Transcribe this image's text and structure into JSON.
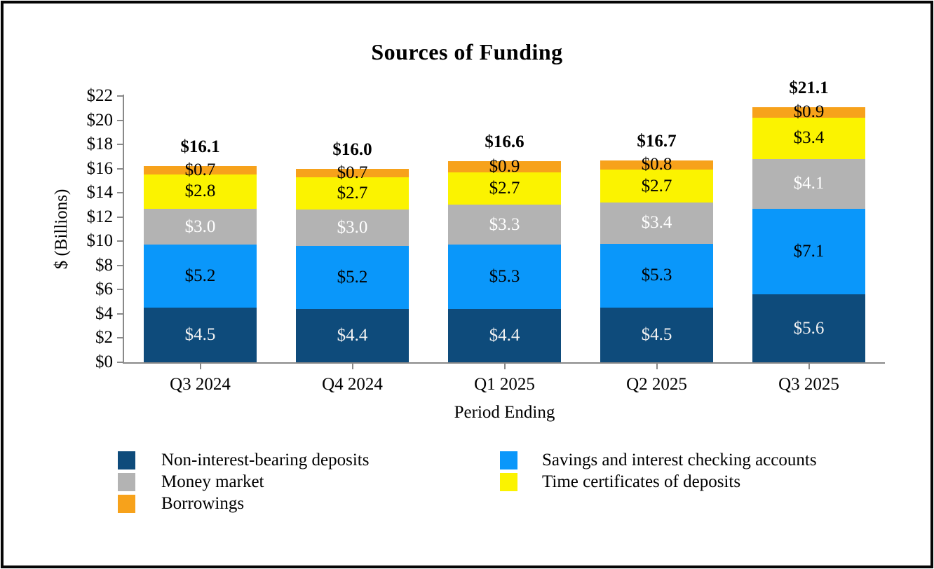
{
  "chart_data": {
    "type": "bar",
    "stacked": true,
    "title": "Sources of Funding",
    "xlabel": "Period Ending",
    "ylabel": "$ (Billions)",
    "ylim": [
      0,
      22
    ],
    "ytick_step": 2,
    "grid": false,
    "legend_position": "bottom",
    "ytick_labels": [
      "$0",
      "$2",
      "$4",
      "$6",
      "$8",
      "$10",
      "$12",
      "$14",
      "$16",
      "$18",
      "$20",
      "$22"
    ],
    "ytick_values": [
      0,
      2,
      4,
      6,
      8,
      10,
      12,
      14,
      16,
      18,
      20,
      22
    ],
    "categories": [
      "Q3 2024",
      "Q4 2024",
      "Q1 2025",
      "Q2 2025",
      "Q3 2025"
    ],
    "totals": [
      "$16.1",
      "$16.0",
      "$16.6",
      "$16.7",
      "$21.1"
    ],
    "series": [
      {
        "name": "Non-interest-bearing deposits",
        "color": "#0E4B7B",
        "label_color": "#F2F2F2",
        "values": [
          4.5,
          4.4,
          4.4,
          4.5,
          5.6
        ],
        "labels": [
          "$4.5",
          "$4.4",
          "$4.4",
          "$4.5",
          "$5.6"
        ]
      },
      {
        "name": "Savings and interest checking accounts",
        "color": "#0A97FA",
        "label_color": "#000000",
        "values": [
          5.2,
          5.2,
          5.3,
          5.3,
          7.1
        ],
        "labels": [
          "$5.2",
          "$5.2",
          "$5.3",
          "$5.3",
          "$7.1"
        ]
      },
      {
        "name": "Money market",
        "color": "#B3B3B3",
        "label_color": "#FFFFFF",
        "values": [
          3.0,
          3.0,
          3.3,
          3.4,
          4.1
        ],
        "labels": [
          "$3.0",
          "$3.0",
          "$3.3",
          "$3.4",
          "$4.1"
        ]
      },
      {
        "name": "Time certificates of deposits",
        "color": "#FBF300",
        "label_color": "#000000",
        "values": [
          2.8,
          2.7,
          2.7,
          2.7,
          3.4
        ],
        "labels": [
          "$2.8",
          "$2.7",
          "$2.7",
          "$2.7",
          "$3.4"
        ]
      },
      {
        "name": "Borrowings",
        "color": "#F7A21B",
        "label_color": "#000000",
        "values": [
          0.7,
          0.7,
          0.9,
          0.8,
          0.9
        ],
        "labels": [
          "$0.7",
          "$0.7",
          "$0.9",
          "$0.8",
          "$0.9"
        ]
      }
    ],
    "legend": {
      "left_column": [
        0,
        2,
        4
      ],
      "right_column": [
        1,
        3
      ]
    }
  }
}
